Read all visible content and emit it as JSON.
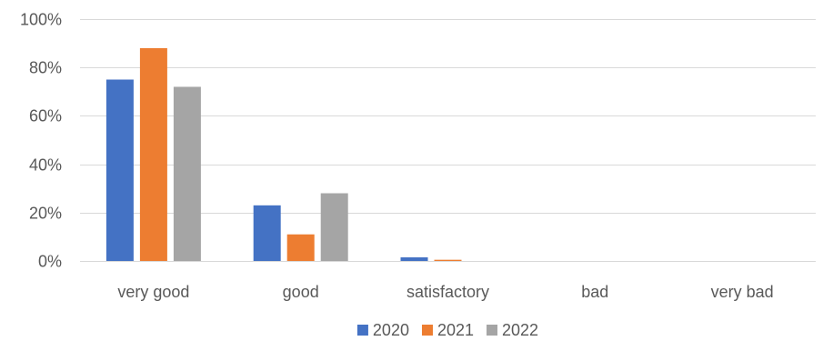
{
  "chart_data": {
    "type": "bar",
    "categories": [
      "very good",
      "good",
      "satisfactory",
      "bad",
      "very bad"
    ],
    "series": [
      {
        "name": "2020",
        "values": [
          75,
          23,
          1.5,
          0,
          0
        ],
        "color": "#4472C4"
      },
      {
        "name": "2021",
        "values": [
          88,
          11,
          0.5,
          0,
          0
        ],
        "color": "#ED7D31"
      },
      {
        "name": "2022",
        "values": [
          72,
          28,
          0,
          0,
          0
        ],
        "color": "#A5A5A5"
      }
    ],
    "y_ticks": [
      0,
      20,
      40,
      60,
      80,
      100
    ],
    "y_tick_labels": [
      "0%",
      "20%",
      "40%",
      "60%",
      "80%",
      "100%"
    ],
    "ylim": [
      0,
      100
    ],
    "y_unit": "%",
    "title": "",
    "xlabel": "",
    "ylabel": "",
    "grid": true,
    "legend_position": "bottom"
  }
}
